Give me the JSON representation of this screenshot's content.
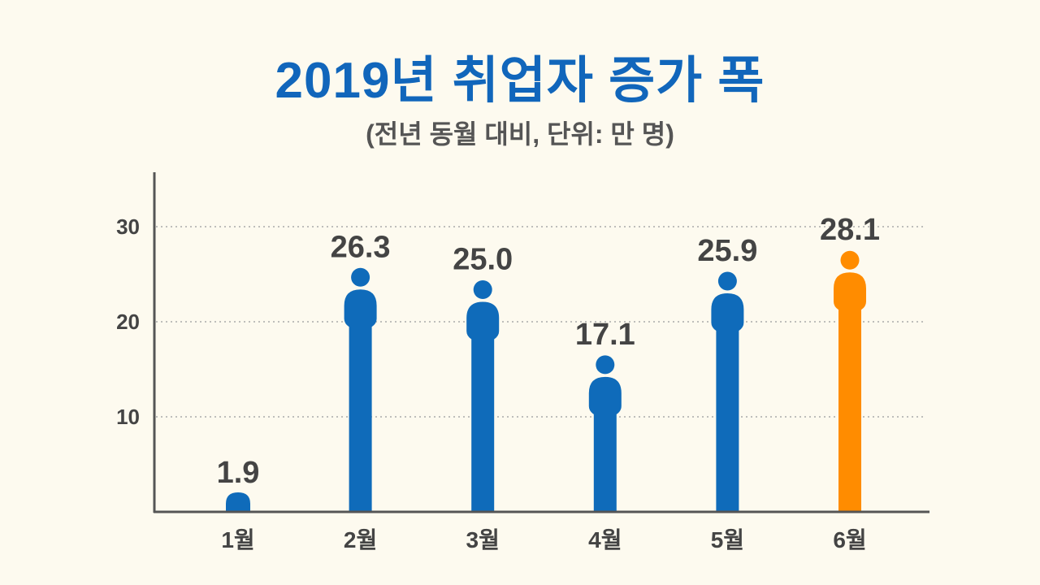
{
  "chart_data": {
    "type": "bar",
    "title": "2019년 취업자 증가 폭",
    "subtitle": "(전년 동월 대비, 단위: 만 명)",
    "categories": [
      "1월",
      "2월",
      "3월",
      "4월",
      "5월",
      "6월"
    ],
    "values": [
      1.9,
      26.3,
      25.0,
      17.1,
      25.9,
      28.1
    ],
    "labels": [
      "1.9",
      "26.3",
      "25.0",
      "17.1",
      "25.9",
      "28.1"
    ],
    "yticks": [
      "10",
      "20",
      "30"
    ],
    "ytick_values": [
      10,
      20,
      30
    ],
    "ylim": [
      0,
      35
    ],
    "grid": true,
    "bar_shape": "person-icon",
    "colors": {
      "default": "#0f6bba",
      "highlight": "#ff8c00",
      "highlight_index": 5,
      "label": "#444444",
      "highlight_label": "#ff8c00",
      "title": "#1166bb"
    }
  }
}
